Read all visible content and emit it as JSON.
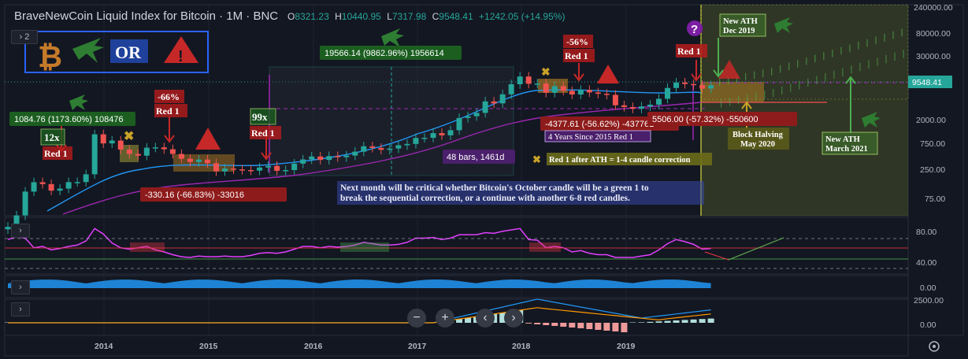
{
  "header": {
    "title": "BraveNewCoin Liquid Index for Bitcoin · 1M · BNC",
    "o_label": "O",
    "o": "8321.23",
    "h_label": "H",
    "h": "10440.95",
    "l_label": "L",
    "l": "7317.98",
    "c_label": "C",
    "c": "9548.41",
    "change": "+1242.05 (+14.95%)",
    "indicator_count": "2"
  },
  "price_axis": {
    "labels": [
      "240000.00",
      "80000.00",
      "30000.00",
      "9548.41",
      "2000.00",
      "750.00",
      "250.00",
      "75.00"
    ],
    "current_price": "9548.41"
  },
  "rsi_axis": {
    "labels": [
      "80.00",
      "40.00"
    ]
  },
  "vol_axis": {
    "labels": [
      "0.00"
    ]
  },
  "macd_axis": {
    "labels": [
      "2500.00",
      "0.00"
    ]
  },
  "time_axis": {
    "labels": [
      "2014",
      "2015",
      "2016",
      "2017",
      "2018",
      "2019"
    ]
  },
  "logo": {
    "or_text": "OR"
  },
  "annotations": {
    "a1": "1084.76 (1173.60%) 108476",
    "a2": "12x",
    "a3": "Red 1",
    "a4": "-66%",
    "a5": "Red 1",
    "a6": "-330.16 (-66.83%) -33016",
    "a7": "99x",
    "a8": "Red 1",
    "a9": "19566.14 (9862.96%) 1956614",
    "a10": "48 bars, 1461d",
    "a11": "-56%",
    "a12": "Red 1",
    "a13": "-4377.61 (-56.62%) -437761",
    "a14": "4 Years Since 2015 Red 1",
    "a15": "Red 1 after ATH = 1-4 candle correction",
    "a16": "Red 1",
    "a17": "5506.00 (-57.32%) -550600",
    "a18": "Block Halving",
    "a19": "May 2020",
    "a20": "New ATH",
    "a21": "Dec 2019",
    "a22": "New ATH",
    "a23": "March 2021",
    "note1": "Next month will be critical whether Bitcoin's October candle will be a green 1 to",
    "note2": "break the sequential correction, or a continue with another 6-8 red candles."
  },
  "colors": {
    "bg": "#131722",
    "up": "#26a69a",
    "down": "#ef5350",
    "rsi": "#e040fb",
    "accent_green": "#4caf50",
    "accent_red": "#f23645",
    "vol": "#2196f3"
  },
  "chart_data": {
    "type": "candlestick",
    "title": "BraveNewCoin Liquid Index for Bitcoin, 1M",
    "y_scale": "log",
    "ylim": [
      40,
      260000
    ],
    "x": [
      "2013-01",
      "2013-02",
      "2013-03",
      "2013-04",
      "2013-05",
      "2013-06",
      "2013-07",
      "2013-08",
      "2013-09",
      "2013-10",
      "2013-11",
      "2013-12",
      "2014-01",
      "2014-02",
      "2014-03",
      "2014-04",
      "2014-05",
      "2014-06",
      "2014-07",
      "2014-08",
      "2014-09",
      "2014-10",
      "2014-11",
      "2014-12",
      "2015-01",
      "2015-02",
      "2015-03",
      "2015-04",
      "2015-05",
      "2015-06",
      "2015-07",
      "2015-08",
      "2015-09",
      "2015-10",
      "2015-11",
      "2015-12",
      "2016-01",
      "2016-02",
      "2016-03",
      "2016-04",
      "2016-05",
      "2016-06",
      "2016-07",
      "2016-08",
      "2016-09",
      "2016-10",
      "2016-11",
      "2016-12",
      "2017-01",
      "2017-02",
      "2017-03",
      "2017-04",
      "2017-05",
      "2017-06",
      "2017-07",
      "2017-08",
      "2017-09",
      "2017-10",
      "2017-11",
      "2017-12",
      "2018-01",
      "2018-02",
      "2018-03",
      "2018-04",
      "2018-05",
      "2018-06",
      "2018-07",
      "2018-08",
      "2018-09",
      "2018-10",
      "2018-11",
      "2018-12",
      "2019-01",
      "2019-02",
      "2019-03",
      "2019-04",
      "2019-05",
      "2019-06",
      "2019-07",
      "2019-08",
      "2019-09",
      "2019-10"
    ],
    "close": [
      20,
      33,
      93,
      140,
      129,
      97,
      106,
      141,
      141,
      198,
      1130,
      760,
      860,
      580,
      480,
      445,
      630,
      640,
      590,
      480,
      390,
      338,
      375,
      320,
      225,
      254,
      245,
      238,
      232,
      266,
      285,
      230,
      238,
      315,
      378,
      430,
      370,
      437,
      416,
      447,
      530,
      670,
      624,
      574,
      608,
      700,
      742,
      963,
      970,
      1190,
      1080,
      1350,
      2300,
      2480,
      2870,
      4730,
      4340,
      6450,
      10000,
      14000,
      10200,
      10300,
      6900,
      9200,
      7500,
      6400,
      7800,
      7000,
      6600,
      6300,
      4000,
      3700,
      3450,
      3800,
      4100,
      5300,
      8500,
      10800,
      10100,
      9600,
      8300,
      9548
    ],
    "rsi_values": [
      70,
      74,
      72,
      58,
      60,
      55,
      57,
      60,
      62,
      68,
      86,
      78,
      65,
      58,
      56,
      58,
      60,
      55,
      52,
      48,
      45,
      44,
      46,
      45,
      45,
      46,
      45,
      45,
      47,
      50,
      51,
      50,
      52,
      56,
      60,
      60,
      58,
      60,
      59,
      60,
      62,
      66,
      64,
      62,
      62,
      63,
      66,
      72,
      72,
      73,
      70,
      72,
      77,
      77,
      77,
      80,
      79,
      82,
      84,
      86,
      70,
      69,
      58,
      60,
      58,
      52,
      54,
      50,
      48,
      48,
      44,
      44,
      44,
      46,
      48,
      55,
      64,
      70,
      67,
      63,
      56,
      57
    ]
  }
}
